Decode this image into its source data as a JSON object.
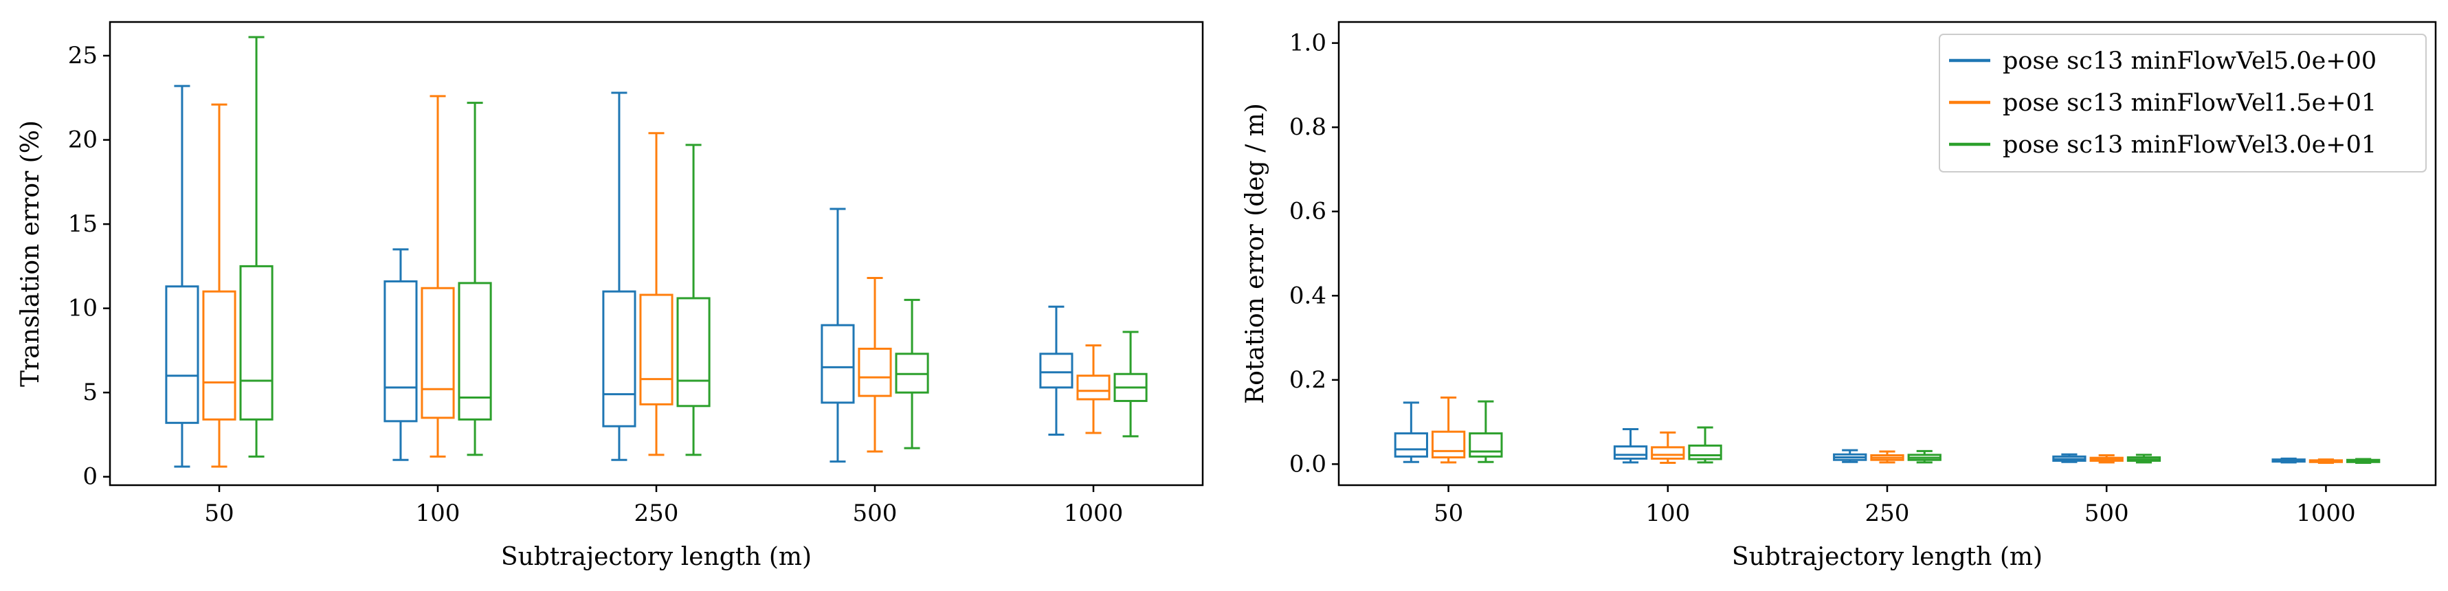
{
  "chart_data": [
    {
      "type": "box",
      "xlabel": "Subtrajectory length (m)",
      "ylabel": "Translation error (%)",
      "categories": [
        "50",
        "100",
        "250",
        "500",
        "1000"
      ],
      "ylim": [
        -0.5,
        27
      ],
      "yticks": [
        0,
        5,
        10,
        15,
        20,
        25
      ],
      "grid": false,
      "series": [
        {
          "name": "pose sc13 minFlowVel5.0e+00",
          "color": "#1f77b4",
          "boxes": [
            {
              "whislo": 0.6,
              "q1": 3.2,
              "med": 6.0,
              "q3": 11.3,
              "whishi": 23.2
            },
            {
              "whislo": 1.0,
              "q1": 3.3,
              "med": 5.3,
              "q3": 11.6,
              "whishi": 13.5
            },
            {
              "whislo": 1.0,
              "q1": 3.0,
              "med": 4.9,
              "q3": 11.0,
              "whishi": 22.8
            },
            {
              "whislo": 0.9,
              "q1": 4.4,
              "med": 6.5,
              "q3": 9.0,
              "whishi": 15.9
            },
            {
              "whislo": 2.5,
              "q1": 5.3,
              "med": 6.2,
              "q3": 7.3,
              "whishi": 10.1
            }
          ]
        },
        {
          "name": "pose sc13 minFlowVel1.5e+01",
          "color": "#ff7f0e",
          "boxes": [
            {
              "whislo": 0.6,
              "q1": 3.4,
              "med": 5.6,
              "q3": 11.0,
              "whishi": 22.1
            },
            {
              "whislo": 1.2,
              "q1": 3.5,
              "med": 5.2,
              "q3": 11.2,
              "whishi": 22.6
            },
            {
              "whislo": 1.3,
              "q1": 4.3,
              "med": 5.8,
              "q3": 10.8,
              "whishi": 20.4
            },
            {
              "whislo": 1.5,
              "q1": 4.8,
              "med": 5.9,
              "q3": 7.6,
              "whishi": 11.8
            },
            {
              "whislo": 2.6,
              "q1": 4.6,
              "med": 5.1,
              "q3": 6.0,
              "whishi": 7.8
            }
          ]
        },
        {
          "name": "pose sc13 minFlowVel3.0e+01",
          "color": "#2ca02c",
          "boxes": [
            {
              "whislo": 1.2,
              "q1": 3.4,
              "med": 5.7,
              "q3": 12.5,
              "whishi": 26.1
            },
            {
              "whislo": 1.3,
              "q1": 3.4,
              "med": 4.7,
              "q3": 11.5,
              "whishi": 22.2
            },
            {
              "whislo": 1.3,
              "q1": 4.2,
              "med": 5.7,
              "q3": 10.6,
              "whishi": 19.7
            },
            {
              "whislo": 1.7,
              "q1": 5.0,
              "med": 6.1,
              "q3": 7.3,
              "whishi": 10.5
            },
            {
              "whislo": 2.4,
              "q1": 4.5,
              "med": 5.3,
              "q3": 6.1,
              "whishi": 8.6
            }
          ]
        }
      ]
    },
    {
      "type": "box",
      "xlabel": "Subtrajectory length (m)",
      "ylabel": "Rotation error (deg / m)",
      "categories": [
        "50",
        "100",
        "250",
        "500",
        "1000"
      ],
      "ylim": [
        -0.05,
        1.05
      ],
      "yticks": [
        "0.0",
        "0.2",
        "0.4",
        "0.6",
        "0.8",
        "1.0"
      ],
      "grid": false,
      "legend_placement": "top-right",
      "series": [
        {
          "name": "pose sc13 minFlowVel5.0e+00",
          "color": "#1f77b4",
          "boxes": [
            {
              "whislo": 0.005,
              "q1": 0.018,
              "med": 0.035,
              "q3": 0.073,
              "whishi": 0.146
            },
            {
              "whislo": 0.004,
              "q1": 0.013,
              "med": 0.022,
              "q3": 0.042,
              "whishi": 0.083
            },
            {
              "whislo": 0.005,
              "q1": 0.01,
              "med": 0.016,
              "q3": 0.023,
              "whishi": 0.033
            },
            {
              "whislo": 0.005,
              "q1": 0.008,
              "med": 0.012,
              "q3": 0.018,
              "whishi": 0.023
            },
            {
              "whislo": 0.004,
              "q1": 0.006,
              "med": 0.008,
              "q3": 0.011,
              "whishi": 0.013
            }
          ]
        },
        {
          "name": "pose sc13 minFlowVel1.5e+01",
          "color": "#ff7f0e",
          "boxes": [
            {
              "whislo": 0.004,
              "q1": 0.016,
              "med": 0.031,
              "q3": 0.077,
              "whishi": 0.158
            },
            {
              "whislo": 0.003,
              "q1": 0.013,
              "med": 0.022,
              "q3": 0.04,
              "whishi": 0.075
            },
            {
              "whislo": 0.004,
              "q1": 0.01,
              "med": 0.015,
              "q3": 0.021,
              "whishi": 0.03
            },
            {
              "whislo": 0.004,
              "q1": 0.008,
              "med": 0.011,
              "q3": 0.015,
              "whishi": 0.021
            },
            {
              "whislo": 0.003,
              "q1": 0.005,
              "med": 0.007,
              "q3": 0.009,
              "whishi": 0.011
            }
          ]
        },
        {
          "name": "pose sc13 minFlowVel3.0e+01",
          "color": "#2ca02c",
          "boxes": [
            {
              "whislo": 0.005,
              "q1": 0.018,
              "med": 0.03,
              "q3": 0.073,
              "whishi": 0.149
            },
            {
              "whislo": 0.004,
              "q1": 0.012,
              "med": 0.021,
              "q3": 0.044,
              "whishi": 0.087
            },
            {
              "whislo": 0.004,
              "q1": 0.01,
              "med": 0.015,
              "q3": 0.022,
              "whishi": 0.031
            },
            {
              "whislo": 0.004,
              "q1": 0.008,
              "med": 0.011,
              "q3": 0.016,
              "whishi": 0.022
            },
            {
              "whislo": 0.003,
              "q1": 0.005,
              "med": 0.007,
              "q3": 0.01,
              "whishi": 0.012
            }
          ]
        }
      ]
    }
  ]
}
